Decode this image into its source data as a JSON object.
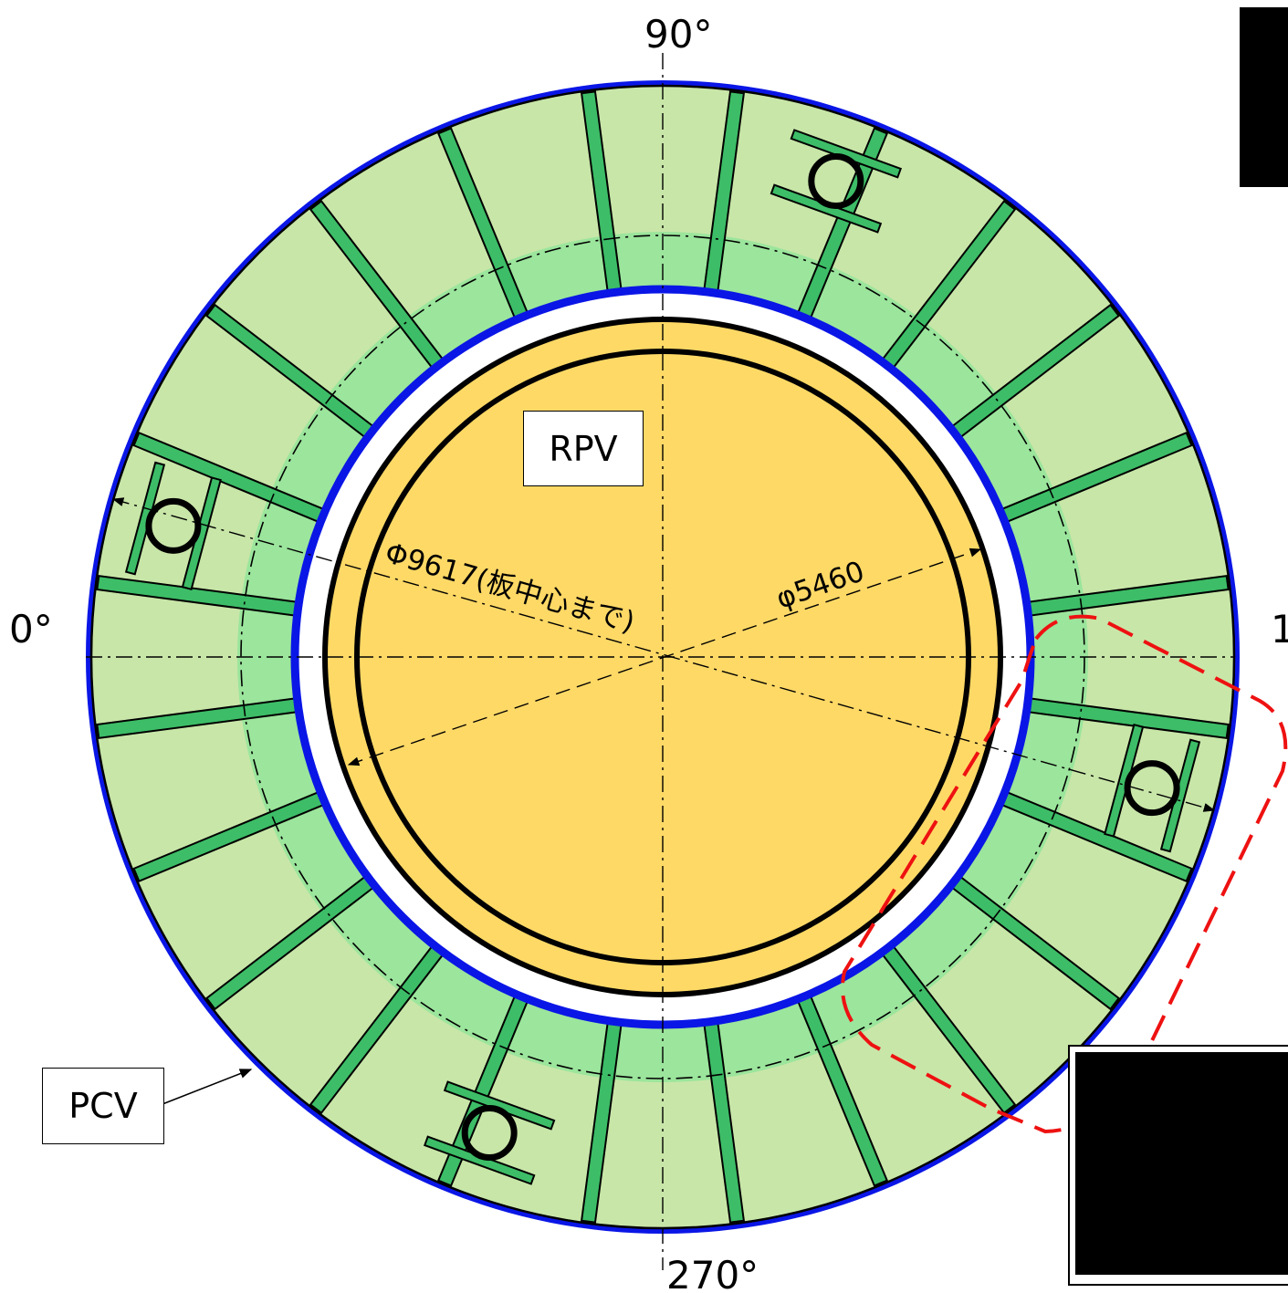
{
  "labels": {
    "angle_90": "90°",
    "angle_0": "0°",
    "angle_180": "1",
    "angle_270": "270°",
    "rpv": "RPV",
    "pcv": "PCV",
    "dim_outer": "Φ9617(板中心まで)",
    "dim_inner": "φ5460"
  },
  "colors": {
    "pcv_ring": "#0a16e6",
    "annulus_fill": "#c8e6a8",
    "inner_band": "#9be59c",
    "rib_fill": "#3dbd67",
    "rpv_fill": "#ffd966",
    "highlight_outline": "#ee1111"
  },
  "ribs": {
    "count": 24,
    "angles_deg": [
      7.5,
      22.5,
      37.5,
      52.5,
      67.5,
      82.5,
      97.5,
      112.5,
      127.5,
      142.5,
      157.5,
      172.5,
      187.5,
      202.5,
      217.5,
      232.5,
      247.5,
      262.5,
      277.5,
      292.5,
      307.5,
      322.5,
      337.5,
      352.5
    ]
  },
  "penetrations": {
    "count": 4,
    "angles_deg": [
      110,
      15,
      290,
      195
    ]
  },
  "redactions": [
    "top-right",
    "bottom-right"
  ]
}
